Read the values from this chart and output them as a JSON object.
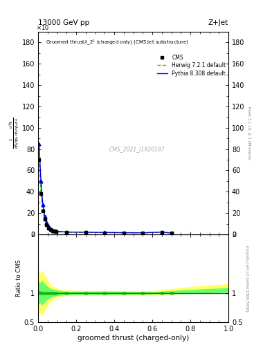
{
  "title_left": "13000 GeV pp",
  "title_right": "Z+Jet",
  "plot_title": "Groomed thrust\\lambda_2^{1} (charged only) (CMS jet substructure)",
  "xlabel": "groomed thrust (charged-only)",
  "ylabel_ratio": "Ratio to CMS",
  "ylabel_right_top": "Rivet 3.1.10, ≥ 3.2M events",
  "ylabel_right_bottom": "mcplots.cern.ch [arXiv:1306.3436]",
  "watermark": "CMS_2021_I1920187",
  "cms_label": "CMS",
  "herwig_label": "Herwig 7.2.1 default",
  "pythia_label": "Pythia 8.308 default",
  "main_ylim": [
    0,
    190
  ],
  "main_yticks": [
    0,
    20,
    40,
    60,
    80,
    100,
    120,
    140,
    160,
    180
  ],
  "ratio_ylim": [
    0.5,
    2.0
  ],
  "ratio_yticks": [
    0.5,
    1.0,
    2.0
  ],
  "xlim": [
    0,
    1
  ],
  "cms_x": [
    0.005,
    0.015,
    0.025,
    0.035,
    0.045,
    0.055,
    0.065,
    0.075,
    0.085,
    0.095,
    0.15,
    0.25,
    0.35,
    0.45,
    0.55,
    0.65,
    0.7
  ],
  "cms_y": [
    70,
    38,
    22,
    14,
    9,
    6,
    4.5,
    3.5,
    3.0,
    2.5,
    2.0,
    1.8,
    1.6,
    1.5,
    1.4,
    2.0,
    1.3
  ],
  "herwig_x": [
    0.005,
    0.015,
    0.025,
    0.035,
    0.045,
    0.055,
    0.065,
    0.075,
    0.085,
    0.095,
    0.15,
    0.25,
    0.35,
    0.45,
    0.55,
    0.65,
    0.7
  ],
  "herwig_y": [
    71,
    38,
    22,
    14,
    9,
    6,
    4.5,
    3.5,
    3.0,
    2.5,
    2.0,
    1.8,
    1.6,
    1.5,
    1.4,
    2.0,
    1.3
  ],
  "pythia_x": [
    0.005,
    0.015,
    0.025,
    0.035,
    0.045,
    0.055,
    0.065,
    0.075,
    0.085,
    0.095,
    0.15,
    0.25,
    0.35,
    0.45,
    0.55,
    0.65,
    0.7
  ],
  "pythia_y": [
    85,
    50,
    28,
    17,
    11,
    7.5,
    5.5,
    4.2,
    3.5,
    3.0,
    2.2,
    2.0,
    1.8,
    1.6,
    1.5,
    2.1,
    1.3
  ],
  "cms_color": "#000000",
  "herwig_color": "#22bb22",
  "pythia_color": "#0000dd",
  "yellow_band_x": [
    0.0,
    0.005,
    0.01,
    0.02,
    0.03,
    0.05,
    0.07,
    0.1,
    0.15,
    0.25,
    0.4,
    0.6,
    0.8,
    1.0
  ],
  "yellow_band_low": [
    0.6,
    0.65,
    0.68,
    0.62,
    0.68,
    0.8,
    0.88,
    0.93,
    0.96,
    0.97,
    0.97,
    0.97,
    1.0,
    1.05
  ],
  "yellow_band_high": [
    1.4,
    1.35,
    1.32,
    1.38,
    1.32,
    1.2,
    1.12,
    1.07,
    1.04,
    1.03,
    1.03,
    1.03,
    1.1,
    1.15
  ],
  "green_band_x": [
    0.0,
    0.005,
    0.01,
    0.02,
    0.03,
    0.05,
    0.07,
    0.1,
    0.15,
    0.25,
    0.4,
    0.6,
    0.8,
    1.0
  ],
  "green_band_low": [
    0.8,
    0.82,
    0.84,
    0.8,
    0.84,
    0.9,
    0.94,
    0.96,
    0.98,
    0.98,
    0.98,
    0.99,
    1.0,
    1.02
  ],
  "green_band_high": [
    1.2,
    1.18,
    1.16,
    1.2,
    1.16,
    1.1,
    1.06,
    1.04,
    1.02,
    1.02,
    1.02,
    1.01,
    1.05,
    1.08
  ],
  "herwig_ratio_x": [
    0.005,
    0.015,
    0.025,
    0.035,
    0.045,
    0.055,
    0.065,
    0.075,
    0.085,
    0.095,
    0.15,
    0.25,
    0.35,
    0.45,
    0.55,
    0.65,
    0.7
  ],
  "herwig_ratio_y": [
    1.01,
    1.0,
    1.0,
    1.0,
    1.0,
    1.0,
    1.0,
    1.0,
    1.0,
    1.0,
    1.0,
    1.0,
    1.0,
    1.0,
    1.0,
    1.0,
    1.0
  ]
}
